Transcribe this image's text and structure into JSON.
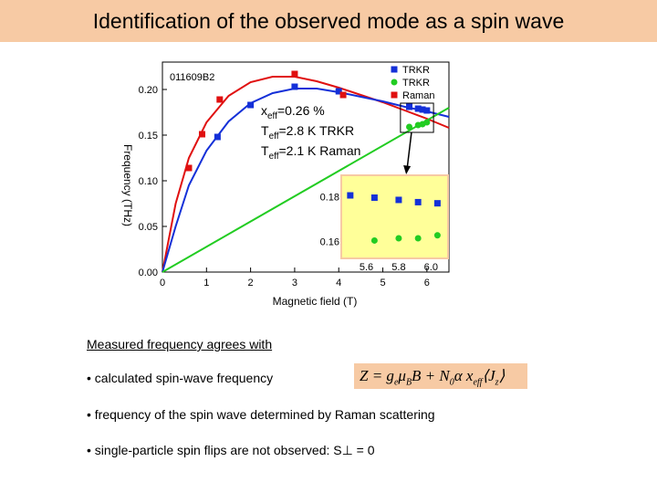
{
  "title": "Identification of the observed mode as a spin wave",
  "chart_data": {
    "type": "scatter",
    "sample_id": "011609B2",
    "xlabel": "Magnetic field (T)",
    "ylabel": "Frequency (THz)",
    "xlim": [
      0,
      6.5
    ],
    "ylim": [
      0,
      0.23
    ],
    "xticks": [
      "0",
      "1",
      "2",
      "3",
      "4",
      "5",
      "6"
    ],
    "yticks": [
      "0.00",
      "0.05",
      "0.10",
      "0.15",
      "0.20"
    ],
    "annotation": {
      "line1": "x",
      "line1_sub": "eff",
      "line1_rest": "=0.26 %",
      "line2": "T",
      "line2_sub": "eff",
      "line2_rest": "=2.8 K  TRKR",
      "line3": "T",
      "line3_sub": "eff",
      "line3_rest": "=2.1 K  Raman"
    },
    "series": [
      {
        "name": "TRKR",
        "marker": "square",
        "color": "#1430d8",
        "x": [
          1.25,
          2.0,
          3.0,
          4.0,
          5.6,
          5.8,
          5.9,
          6.0
        ],
        "y": [
          0.148,
          0.183,
          0.203,
          0.198,
          0.181,
          0.179,
          0.178,
          0.177
        ]
      },
      {
        "name": "TRKR",
        "marker": "circle",
        "color": "#22cc22",
        "x": [
          5.6,
          5.8,
          5.9,
          6.0
        ],
        "y": [
          0.159,
          0.161,
          0.162,
          0.164
        ]
      },
      {
        "name": "Raman",
        "marker": "square",
        "color": "#e01010",
        "x": [
          0.6,
          0.9,
          1.3,
          3.0,
          4.1
        ],
        "y": [
          0.114,
          0.151,
          0.189,
          0.217,
          0.194
        ]
      }
    ],
    "fit_lines": [
      {
        "color": "#e01010",
        "x": [
          0,
          0.3,
          0.6,
          1.0,
          1.5,
          2.0,
          2.5,
          3.0,
          3.5,
          4.0,
          4.5,
          5.0,
          5.5,
          6.0,
          6.5
        ],
        "y": [
          0,
          0.075,
          0.125,
          0.164,
          0.193,
          0.208,
          0.214,
          0.214,
          0.209,
          0.202,
          0.194,
          0.186,
          0.177,
          0.168,
          0.158
        ]
      },
      {
        "color": "#1430d8",
        "x": [
          0,
          0.3,
          0.6,
          1.0,
          1.5,
          2.0,
          2.5,
          3.0,
          3.5,
          4.0,
          4.5,
          5.0,
          5.5,
          6.0,
          6.5
        ],
        "y": [
          0,
          0.05,
          0.095,
          0.133,
          0.165,
          0.185,
          0.196,
          0.201,
          0.201,
          0.197,
          0.192,
          0.187,
          0.181,
          0.176,
          0.17
        ]
      },
      {
        "color": "#22cc22",
        "x": [
          0,
          6.5
        ],
        "y": [
          0,
          0.18
        ]
      }
    ],
    "inset": {
      "xlim": [
        5.45,
        6.1
      ],
      "ylim": [
        0.153,
        0.189
      ],
      "xticks": [
        "5.6",
        "5.8",
        "6.0"
      ],
      "yticks": [
        "0.18",
        "0.16"
      ],
      "series": [
        {
          "marker": "square",
          "color": "#1430d8",
          "x": [
            5.5,
            5.65,
            5.8,
            5.92,
            6.04
          ],
          "y": [
            0.1805,
            0.1795,
            0.1785,
            0.1775,
            0.177
          ]
        },
        {
          "marker": "circle",
          "color": "#22cc22",
          "x": [
            5.65,
            5.8,
            5.92,
            6.04
          ],
          "y": [
            0.1605,
            0.1615,
            0.1615,
            0.1628
          ]
        }
      ]
    }
  },
  "text": {
    "heading": "Measured frequency agrees with",
    "bullet1": "• calculated spin-wave frequency",
    "bullet2": "• frequency of the spin wave determined by Raman scattering",
    "bullet3": "• single-particle spin flips are not observed:  S⊥ = 0",
    "formula": "Z = g e μ B B + N 0 α x eff ⟨J z⟩"
  }
}
